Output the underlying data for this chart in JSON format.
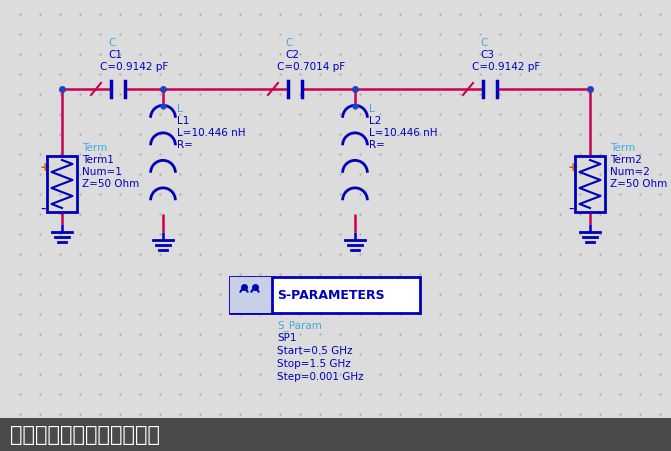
{
  "bg_color": "#dcdcdc",
  "main_bg": "#e4e4e4",
  "title_bar_color": "#4a4a4a",
  "title_text": "插入损耗法设计高通滤波器",
  "title_color": "#ffffff",
  "title_fontsize": 16,
  "wire_color": "#cc0055",
  "component_color": "#0000bb",
  "label_color": "#44aadd",
  "label_color2": "#0000bb",
  "ground_color": "#0000bb",
  "dot_color": "#2244bb",
  "s_param_label": "S-PARAMETERS",
  "sp_lines": [
    "S_Param",
    "SP1",
    "Start=0.5 GHz",
    "Stop=1.5 GHz",
    "Step=0.001 GHz"
  ],
  "plus_color": "#cc6600",
  "minus_color": "#0000bb",
  "dot_bg": "#e4e4e4"
}
